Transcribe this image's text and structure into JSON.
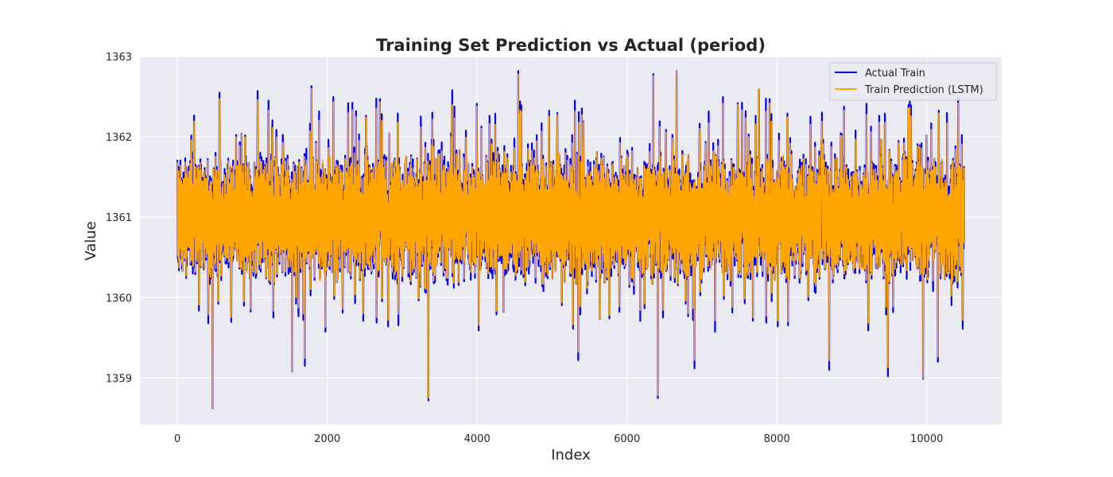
{
  "chart_data": {
    "type": "line",
    "title": "Training Set Prediction vs Actual (period)",
    "xlabel": "Index",
    "ylabel": "Value",
    "xlim": [
      -500,
      11000
    ],
    "ylim": [
      1358.42,
      1362.99
    ],
    "xticks": [
      0,
      2000,
      4000,
      6000,
      8000,
      10000
    ],
    "yticks": [
      1359,
      1360,
      1361,
      1362,
      1363
    ],
    "grid": true,
    "legend_position": "top-right",
    "x_range": [
      0,
      10500
    ],
    "series": [
      {
        "name": "Actual Train",
        "color": "#0000ff",
        "description_stats": {
          "center": 1361.0,
          "typical_low": 1360.4,
          "typical_high": 1361.7
        },
        "extremes": [
          {
            "x": 470,
            "y": 1358.62
          },
          {
            "x": 3350,
            "y": 1358.72
          },
          {
            "x": 6410,
            "y": 1358.75
          },
          {
            "x": 9950,
            "y": 1358.99
          },
          {
            "x": 9480,
            "y": 1359.02
          },
          {
            "x": 1530,
            "y": 1359.08
          },
          {
            "x": 8700,
            "y": 1359.1
          },
          {
            "x": 6900,
            "y": 1359.12
          },
          {
            "x": 1700,
            "y": 1359.15
          },
          {
            "x": 10150,
            "y": 1359.2
          },
          {
            "x": 5350,
            "y": 1359.22
          },
          {
            "x": 4550,
            "y": 1362.82
          },
          {
            "x": 6660,
            "y": 1362.82
          },
          {
            "x": 6350,
            "y": 1362.78
          },
          {
            "x": 1790,
            "y": 1362.63
          },
          {
            "x": 560,
            "y": 1362.55
          },
          {
            "x": 1070,
            "y": 1362.57
          },
          {
            "x": 3670,
            "y": 1362.58
          },
          {
            "x": 7760,
            "y": 1362.59
          },
          {
            "x": 10420,
            "y": 1362.48
          }
        ]
      },
      {
        "name": "Train Prediction (LSTM)",
        "color": "#ffa500",
        "description_stats": {
          "center": 1361.0,
          "typical_low": 1360.4,
          "typical_high": 1361.7
        },
        "extremes": [
          {
            "x": 470,
            "y": 1358.62
          },
          {
            "x": 3350,
            "y": 1358.75
          },
          {
            "x": 6410,
            "y": 1358.78
          },
          {
            "x": 9950,
            "y": 1359.0
          },
          {
            "x": 1530,
            "y": 1359.08
          },
          {
            "x": 4550,
            "y": 1362.78
          },
          {
            "x": 6660,
            "y": 1362.82
          },
          {
            "x": 6350,
            "y": 1362.76
          },
          {
            "x": 1790,
            "y": 1362.6
          },
          {
            "x": 7760,
            "y": 1362.59
          }
        ]
      }
    ]
  }
}
